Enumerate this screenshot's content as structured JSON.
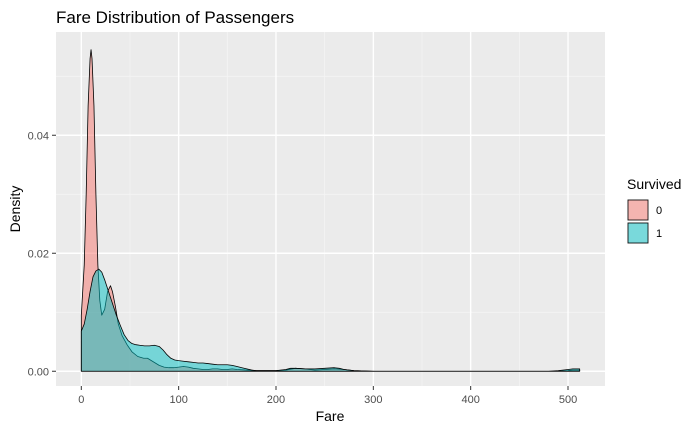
{
  "chart_data": {
    "type": "area",
    "subtype": "density",
    "title": "Fare Distribution of Passengers",
    "xlabel": "Fare",
    "ylabel": "Density",
    "xlim": [
      -26,
      538
    ],
    "ylim": [
      -0.0025,
      0.0575
    ],
    "x_ticks": [
      0,
      100,
      200,
      300,
      400,
      500
    ],
    "y_ticks": [
      0.0,
      0.02,
      0.04
    ],
    "y_tick_labels": [
      "0.00",
      "0.02",
      "0.04"
    ],
    "grid": true,
    "legend": {
      "title": "Survived",
      "position": "right",
      "entries": [
        "0",
        "1"
      ]
    },
    "series": [
      {
        "name": "0",
        "color": "#F8766D",
        "alpha": 0.5,
        "points": [
          [
            0,
            0.0095
          ],
          [
            3,
            0.018
          ],
          [
            5,
            0.03
          ],
          [
            7,
            0.045
          ],
          [
            9,
            0.053
          ],
          [
            10,
            0.0545
          ],
          [
            11,
            0.053
          ],
          [
            13,
            0.045
          ],
          [
            15,
            0.03
          ],
          [
            17,
            0.018
          ],
          [
            19,
            0.012
          ],
          [
            21,
            0.0095
          ],
          [
            24,
            0.0105
          ],
          [
            27,
            0.0135
          ],
          [
            30,
            0.0145
          ],
          [
            32,
            0.0135
          ],
          [
            35,
            0.011
          ],
          [
            38,
            0.008
          ],
          [
            42,
            0.006
          ],
          [
            47,
            0.0045
          ],
          [
            52,
            0.0033
          ],
          [
            58,
            0.0025
          ],
          [
            64,
            0.0022
          ],
          [
            68,
            0.0022
          ],
          [
            72,
            0.0018
          ],
          [
            76,
            0.0014
          ],
          [
            80,
            0.001
          ],
          [
            85,
            0.0007
          ],
          [
            90,
            0.0006
          ],
          [
            95,
            0.0006
          ],
          [
            100,
            0.0007
          ],
          [
            105,
            0.0008
          ],
          [
            110,
            0.0007
          ],
          [
            115,
            0.0005
          ],
          [
            120,
            0.0004
          ],
          [
            125,
            0.0003
          ],
          [
            130,
            0.0003
          ],
          [
            135,
            0.0004
          ],
          [
            140,
            0.0004
          ],
          [
            145,
            0.0003
          ],
          [
            150,
            0.0003
          ],
          [
            155,
            0.0004
          ],
          [
            160,
            0.0003
          ],
          [
            170,
            0.0002
          ],
          [
            180,
            0.0001
          ],
          [
            190,
            0.0001
          ],
          [
            200,
            0.0001
          ],
          [
            210,
            0.0002
          ],
          [
            220,
            0.0005
          ],
          [
            230,
            0.0004
          ],
          [
            240,
            0.0002
          ],
          [
            250,
            0.0003
          ],
          [
            260,
            0.0004
          ],
          [
            270,
            0.0003
          ],
          [
            280,
            0.0001
          ],
          [
            300,
            0.0
          ],
          [
            350,
            0.0
          ],
          [
            400,
            0.0
          ],
          [
            450,
            0.0
          ],
          [
            480,
            0.0
          ],
          [
            490,
            0.0
          ],
          [
            500,
            0.0001
          ],
          [
            505,
            0.0002
          ],
          [
            510,
            0.0002
          ],
          [
            512,
            0.0002
          ]
        ]
      },
      {
        "name": "1",
        "color": "#00BFC4",
        "alpha": 0.5,
        "points": [
          [
            0,
            0.0068
          ],
          [
            3,
            0.008
          ],
          [
            6,
            0.0105
          ],
          [
            9,
            0.0135
          ],
          [
            12,
            0.016
          ],
          [
            15,
            0.017
          ],
          [
            18,
            0.0173
          ],
          [
            21,
            0.0168
          ],
          [
            24,
            0.0155
          ],
          [
            27,
            0.014
          ],
          [
            30,
            0.0125
          ],
          [
            33,
            0.011
          ],
          [
            36,
            0.0095
          ],
          [
            40,
            0.0078
          ],
          [
            44,
            0.0062
          ],
          [
            48,
            0.0052
          ],
          [
            52,
            0.0047
          ],
          [
            56,
            0.0045
          ],
          [
            60,
            0.0044
          ],
          [
            65,
            0.0043
          ],
          [
            70,
            0.0043
          ],
          [
            75,
            0.0044
          ],
          [
            80,
            0.0042
          ],
          [
            84,
            0.0036
          ],
          [
            88,
            0.0028
          ],
          [
            92,
            0.0022
          ],
          [
            96,
            0.0019
          ],
          [
            100,
            0.0018
          ],
          [
            105,
            0.0017
          ],
          [
            110,
            0.0016
          ],
          [
            115,
            0.0015
          ],
          [
            120,
            0.0014
          ],
          [
            125,
            0.0014
          ],
          [
            130,
            0.0013
          ],
          [
            135,
            0.0012
          ],
          [
            140,
            0.0011
          ],
          [
            145,
            0.0011
          ],
          [
            150,
            0.0011
          ],
          [
            155,
            0.001
          ],
          [
            160,
            0.0008
          ],
          [
            165,
            0.0006
          ],
          [
            170,
            0.0004
          ],
          [
            175,
            0.0002
          ],
          [
            180,
            0.0001
          ],
          [
            190,
            0.0001
          ],
          [
            200,
            0.0001
          ],
          [
            210,
            0.0003
          ],
          [
            215,
            0.0005
          ],
          [
            220,
            0.0005
          ],
          [
            230,
            0.0004
          ],
          [
            240,
            0.0004
          ],
          [
            250,
            0.0005
          ],
          [
            260,
            0.0006
          ],
          [
            265,
            0.0005
          ],
          [
            270,
            0.0003
          ],
          [
            280,
            0.0001
          ],
          [
            300,
            0.0
          ],
          [
            350,
            0.0
          ],
          [
            400,
            0.0
          ],
          [
            450,
            0.0
          ],
          [
            480,
            0.0
          ],
          [
            490,
            0.0001
          ],
          [
            500,
            0.0003
          ],
          [
            505,
            0.0004
          ],
          [
            510,
            0.0004
          ],
          [
            512,
            0.0004
          ]
        ]
      }
    ]
  }
}
